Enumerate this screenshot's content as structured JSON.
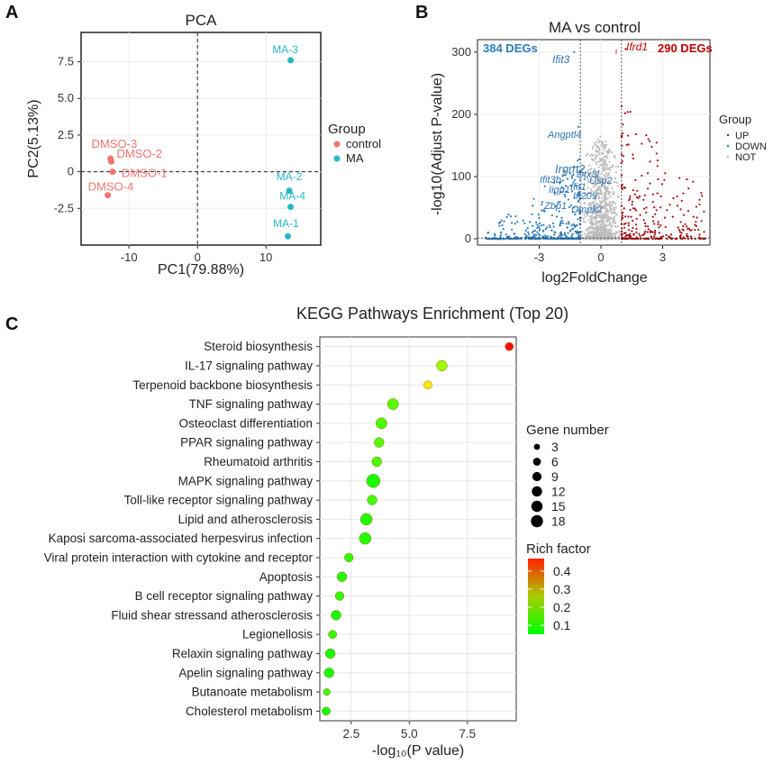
{
  "panels": {
    "a": "A",
    "b": "B",
    "c": "C"
  },
  "colors": {
    "control": "#f07470",
    "ma": "#26b8c6",
    "up": "#a50f15",
    "down": "#2c7bb6",
    "not": "#bdbdbd",
    "rich_low": "#00ff00",
    "rich_high": "#ff0000"
  },
  "chart_data": [
    {
      "id": "pca",
      "type": "scatter",
      "title": "PCA",
      "xlabel": "PC1(79.88%)",
      "ylabel": "PC2(5.13%)",
      "xlim": [
        -17,
        18
      ],
      "ylim": [
        -5,
        9.5
      ],
      "xticks": [
        -10,
        0,
        10
      ],
      "yticks": [
        -2.5,
        0,
        2.5,
        5,
        7.5
      ],
      "ytick_labels": [
        "-2.5",
        "0",
        "2.5",
        "5.0",
        "7.5"
      ],
      "legend_title": "Group",
      "series": [
        {
          "name": "control",
          "points": [
            {
              "label": "DMSO-3",
              "x": -12.7,
              "y": 0.9
            },
            {
              "label": "DMSO-2",
              "x": -12.6,
              "y": 0.7
            },
            {
              "label": "DMSO-1",
              "x": -12.4,
              "y": 0.0
            },
            {
              "label": "DMSO-4",
              "x": -13.1,
              "y": -1.6
            }
          ]
        },
        {
          "name": "MA",
          "points": [
            {
              "label": "MA-3",
              "x": 13.6,
              "y": 7.6
            },
            {
              "label": "MA-2",
              "x": 13.4,
              "y": -1.3
            },
            {
              "label": "MA-4",
              "x": 13.6,
              "y": -2.4
            },
            {
              "label": "MA-1",
              "x": 13.2,
              "y": -4.4
            }
          ]
        }
      ]
    },
    {
      "id": "volcano",
      "type": "scatter",
      "title": "MA vs control",
      "xlabel": "log2FoldChange",
      "ylabel": "-log10(Adjust P-value)",
      "xlim": [
        -6,
        5.3
      ],
      "ylim": [
        -10,
        320
      ],
      "xticks": [
        -3,
        0,
        3
      ],
      "yticks": [
        0,
        100,
        200,
        300
      ],
      "vlines": [
        -1,
        1
      ],
      "hline": 1.3,
      "legend_title": "Group",
      "legend": [
        "UP",
        "DOWN",
        "NOT"
      ],
      "down_count_label": "384 DEGs",
      "up_count_label": "290 DEGs",
      "up_count": 290,
      "down_count": 384,
      "genes": [
        {
          "name": "Ifit3",
          "x": -1.3,
          "y": 300,
          "side": "down"
        },
        {
          "name": "Ifrd1",
          "x": 1.2,
          "y": 305,
          "side": "up"
        },
        {
          "name": "Angptl4",
          "x": -1.1,
          "y": 180,
          "side": "down"
        },
        {
          "name": "Irgm2",
          "x": -0.9,
          "y": 112,
          "side": "down"
        },
        {
          "name": "Ifit3b",
          "x": -1.4,
          "y": 98,
          "side": "down"
        },
        {
          "name": "Iigp1",
          "x": -1.2,
          "y": 85,
          "side": "down"
        },
        {
          "name": "Ifit1",
          "x": -1.0,
          "y": 82,
          "side": "down"
        },
        {
          "name": "Dtx3l",
          "x": -1.0,
          "y": 95,
          "side": "down"
        },
        {
          "name": "Usp2",
          "x": -0.8,
          "y": 96,
          "side": "down"
        },
        {
          "name": "Ifi209",
          "x": -1.1,
          "y": 70,
          "side": "down"
        },
        {
          "name": "Zbp1",
          "x": -1.3,
          "y": 50,
          "side": "down"
        },
        {
          "name": "Cmpk2",
          "x": -1.0,
          "y": 45,
          "side": "down"
        }
      ]
    },
    {
      "id": "kegg",
      "type": "scatter",
      "title": "KEGG Pathways Enrichment (Top 20)",
      "xlabel": "-log₁₀(P value)",
      "xlim": [
        1.15,
        9.6
      ],
      "xticks": [
        2.5,
        5.0,
        7.5
      ],
      "xtick_labels": [
        "2.5",
        "5.0",
        "7.5"
      ],
      "size_legend_title": "Gene number",
      "size_legend": [
        3,
        6,
        9,
        12,
        15,
        18
      ],
      "color_legend_title": "Rich factor",
      "color_legend_ticks": [
        0.1,
        0.2,
        0.3,
        0.4
      ],
      "color_range": [
        0.05,
        0.47
      ],
      "pathways": [
        {
          "name": "Steroid biosynthesis",
          "x": 9.3,
          "genes": 5,
          "rich": 0.46
        },
        {
          "name": "IL-17 signaling pathway",
          "x": 6.4,
          "genes": 10,
          "rich": 0.18
        },
        {
          "name": "Terpenoid  backbone biosynthesis",
          "x": 5.8,
          "genes": 5,
          "rich": 0.28
        },
        {
          "name": "TNF signaling pathway",
          "x": 4.3,
          "genes": 11,
          "rich": 0.12
        },
        {
          "name": "Osteoclast differentiation",
          "x": 3.8,
          "genes": 11,
          "rich": 0.11
        },
        {
          "name": "PPAR signaling pathway",
          "x": 3.7,
          "genes": 8,
          "rich": 0.12
        },
        {
          "name": "Rheumatoid  arthritis",
          "x": 3.6,
          "genes": 8,
          "rich": 0.11
        },
        {
          "name": "MAPK signaling pathway",
          "x": 3.45,
          "genes": 18,
          "rich": 0.07
        },
        {
          "name": "Toll-like  receptor signaling pathway",
          "x": 3.4,
          "genes": 8,
          "rich": 0.1
        },
        {
          "name": "Lipid and atherosclerosis",
          "x": 3.15,
          "genes": 13,
          "rich": 0.08
        },
        {
          "name": "Kaposi sarcoma-associated herpesvirus infection",
          "x": 3.1,
          "genes": 13,
          "rich": 0.08
        },
        {
          "name": "Viral protein interaction with cytokine and receptor",
          "x": 2.4,
          "genes": 6,
          "rich": 0.09
        },
        {
          "name": "Apoptosis",
          "x": 2.1,
          "genes": 8,
          "rich": 0.08
        },
        {
          "name": "B cell receptor signaling pathway",
          "x": 2.0,
          "genes": 6,
          "rich": 0.09
        },
        {
          "name": "Fluid shear stressand atherosclerosis",
          "x": 1.85,
          "genes": 8,
          "rich": 0.07
        },
        {
          "name": "Legionellosis",
          "x": 1.7,
          "genes": 5,
          "rich": 0.09
        },
        {
          "name": "Relaxin signaling pathway",
          "x": 1.6,
          "genes": 8,
          "rich": 0.07
        },
        {
          "name": "Apelin  signaling pathway",
          "x": 1.55,
          "genes": 8,
          "rich": 0.07
        },
        {
          "name": "Butanoate metabolism",
          "x": 1.45,
          "genes": 3,
          "rich": 0.1
        },
        {
          "name": "Cholesterol metabolism",
          "x": 1.42,
          "genes": 5,
          "rich": 0.07
        }
      ]
    }
  ]
}
